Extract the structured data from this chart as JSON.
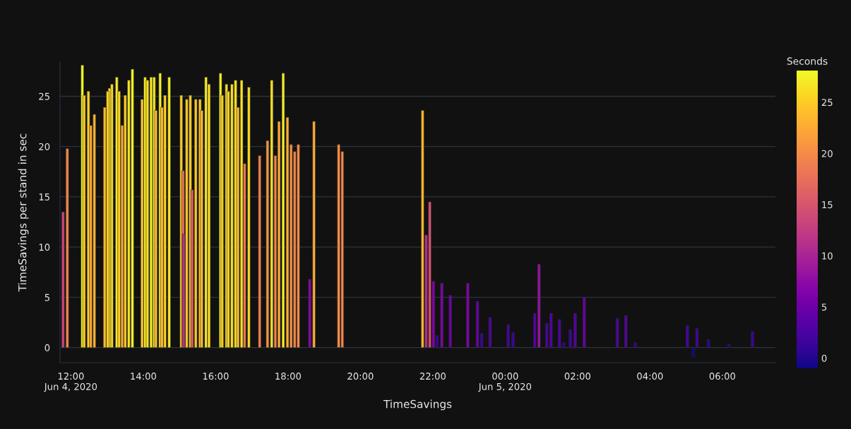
{
  "chart_data": {
    "type": "bar",
    "xlabel": "TimeSavings",
    "ylabel": "TimeSavings per stand in sec",
    "clabel": "Seconds",
    "x": [
      "2020-06-04T11:47",
      "2020-06-04T11:54",
      "2020-06-04T12:19",
      "2020-06-04T12:22",
      "2020-06-04T12:29",
      "2020-06-04T12:33",
      "2020-06-04T12:39",
      "2020-06-04T12:56",
      "2020-06-04T13:01",
      "2020-06-04T13:04",
      "2020-06-04T13:08",
      "2020-06-04T13:16",
      "2020-06-04T13:20",
      "2020-06-04T13:25",
      "2020-06-04T13:30",
      "2020-06-04T13:36",
      "2020-06-04T13:42",
      "2020-06-04T13:58",
      "2020-06-04T14:03",
      "2020-06-04T14:07",
      "2020-06-04T14:13",
      "2020-06-04T14:18",
      "2020-06-04T14:21",
      "2020-06-04T14:28",
      "2020-06-04T14:31",
      "2020-06-04T14:36",
      "2020-06-04T14:43",
      "2020-06-04T15:03",
      "2020-06-04T15:06",
      "2020-06-04T15:07",
      "2020-06-04T15:12",
      "2020-06-04T15:18",
      "2020-06-04T15:21",
      "2020-06-04T15:27",
      "2020-06-04T15:34",
      "2020-06-04T15:37",
      "2020-06-04T15:44",
      "2020-06-04T15:49",
      "2020-06-04T16:08",
      "2020-06-04T16:11",
      "2020-06-04T16:18",
      "2020-06-04T16:21",
      "2020-06-04T16:27",
      "2020-06-04T16:33",
      "2020-06-04T16:37",
      "2020-06-04T16:43",
      "2020-06-04T16:48",
      "2020-06-04T16:55",
      "2020-06-04T17:13",
      "2020-06-04T17:26",
      "2020-06-04T17:33",
      "2020-06-04T17:39",
      "2020-06-04T17:45",
      "2020-06-04T17:52",
      "2020-06-04T17:59",
      "2020-06-04T18:05",
      "2020-06-04T18:11",
      "2020-06-04T18:17",
      "2020-06-04T18:36",
      "2020-06-04T18:43",
      "2020-06-04T19:24",
      "2020-06-04T19:30",
      "2020-06-04T21:43",
      "2020-06-04T21:49",
      "2020-06-04T21:55",
      "2020-06-04T22:01",
      "2020-06-04T22:07",
      "2020-06-04T22:15",
      "2020-06-04T22:29",
      "2020-06-04T22:58",
      "2020-06-04T23:14",
      "2020-06-04T23:21",
      "2020-06-04T23:35",
      "2020-06-05T00:05",
      "2020-06-05T00:13",
      "2020-06-05T00:49",
      "2020-06-05T00:56",
      "2020-06-05T01:09",
      "2020-06-05T01:16",
      "2020-06-05T01:30",
      "2020-06-05T01:37",
      "2020-06-05T01:48",
      "2020-06-05T01:56",
      "2020-06-05T02:11",
      "2020-06-05T03:06",
      "2020-06-05T03:20",
      "2020-06-05T03:36",
      "2020-06-05T05:02",
      "2020-06-05T05:12",
      "2020-06-05T05:18",
      "2020-06-05T05:37",
      "2020-06-05T06:11",
      "2020-06-05T06:50"
    ],
    "values": [
      13.5,
      19.8,
      28.1,
      25.1,
      25.5,
      22.1,
      23.2,
      23.9,
      25.5,
      25.8,
      26.2,
      26.9,
      25.5,
      22.1,
      25.1,
      26.6,
      27.7,
      24.7,
      26.9,
      26.6,
      26.9,
      26.9,
      23.6,
      27.3,
      23.9,
      25.1,
      26.9,
      25.1,
      17.6,
      11.3,
      24.7,
      25.1,
      15.7,
      24.7,
      24.7,
      23.6,
      26.9,
      26.2,
      27.3,
      25.1,
      26.2,
      25.5,
      26.2,
      26.6,
      23.9,
      26.6,
      18.3,
      25.9,
      19.1,
      20.6,
      26.6,
      19.1,
      22.5,
      27.3,
      22.9,
      20.2,
      19.5,
      20.2,
      6.8,
      22.5,
      20.2,
      19.5,
      23.6,
      11.2,
      14.5,
      6.6,
      1.2,
      6.4,
      5.2,
      6.4,
      4.6,
      1.4,
      3.0,
      2.3,
      1.5,
      3.4,
      8.3,
      2.4,
      3.4,
      2.8,
      0.5,
      1.8,
      3.4,
      5.0,
      2.9,
      3.2,
      0.5,
      2.2,
      -0.9,
      1.9,
      0.8,
      0.35,
      1.6
    ],
    "xlim": [
      "2020-06-04T11:42",
      "2020-06-05T07:28"
    ],
    "xticks": [
      {
        "value": "2020-06-04T12:00",
        "label": "12:00\nJun 4, 2020"
      },
      {
        "value": "2020-06-04T14:00",
        "label": "14:00"
      },
      {
        "value": "2020-06-04T16:00",
        "label": "16:00"
      },
      {
        "value": "2020-06-04T18:00",
        "label": "18:00"
      },
      {
        "value": "2020-06-04T20:00",
        "label": "20:00"
      },
      {
        "value": "2020-06-04T22:00",
        "label": "22:00"
      },
      {
        "value": "2020-06-05T00:00",
        "label": "00:00\nJun 5, 2020"
      },
      {
        "value": "2020-06-05T02:00",
        "label": "02:00"
      },
      {
        "value": "2020-06-05T04:00",
        "label": "04:00"
      },
      {
        "value": "2020-06-05T06:00",
        "label": "06:00"
      }
    ],
    "ylim": [
      -1.5,
      28.4
    ],
    "yticks": [
      0,
      5,
      10,
      15,
      20,
      25
    ],
    "clim": [
      -1.0,
      28.1
    ],
    "cticks": [
      0,
      5,
      10,
      15,
      20,
      25
    ],
    "grid": "y",
    "legend": false
  }
}
